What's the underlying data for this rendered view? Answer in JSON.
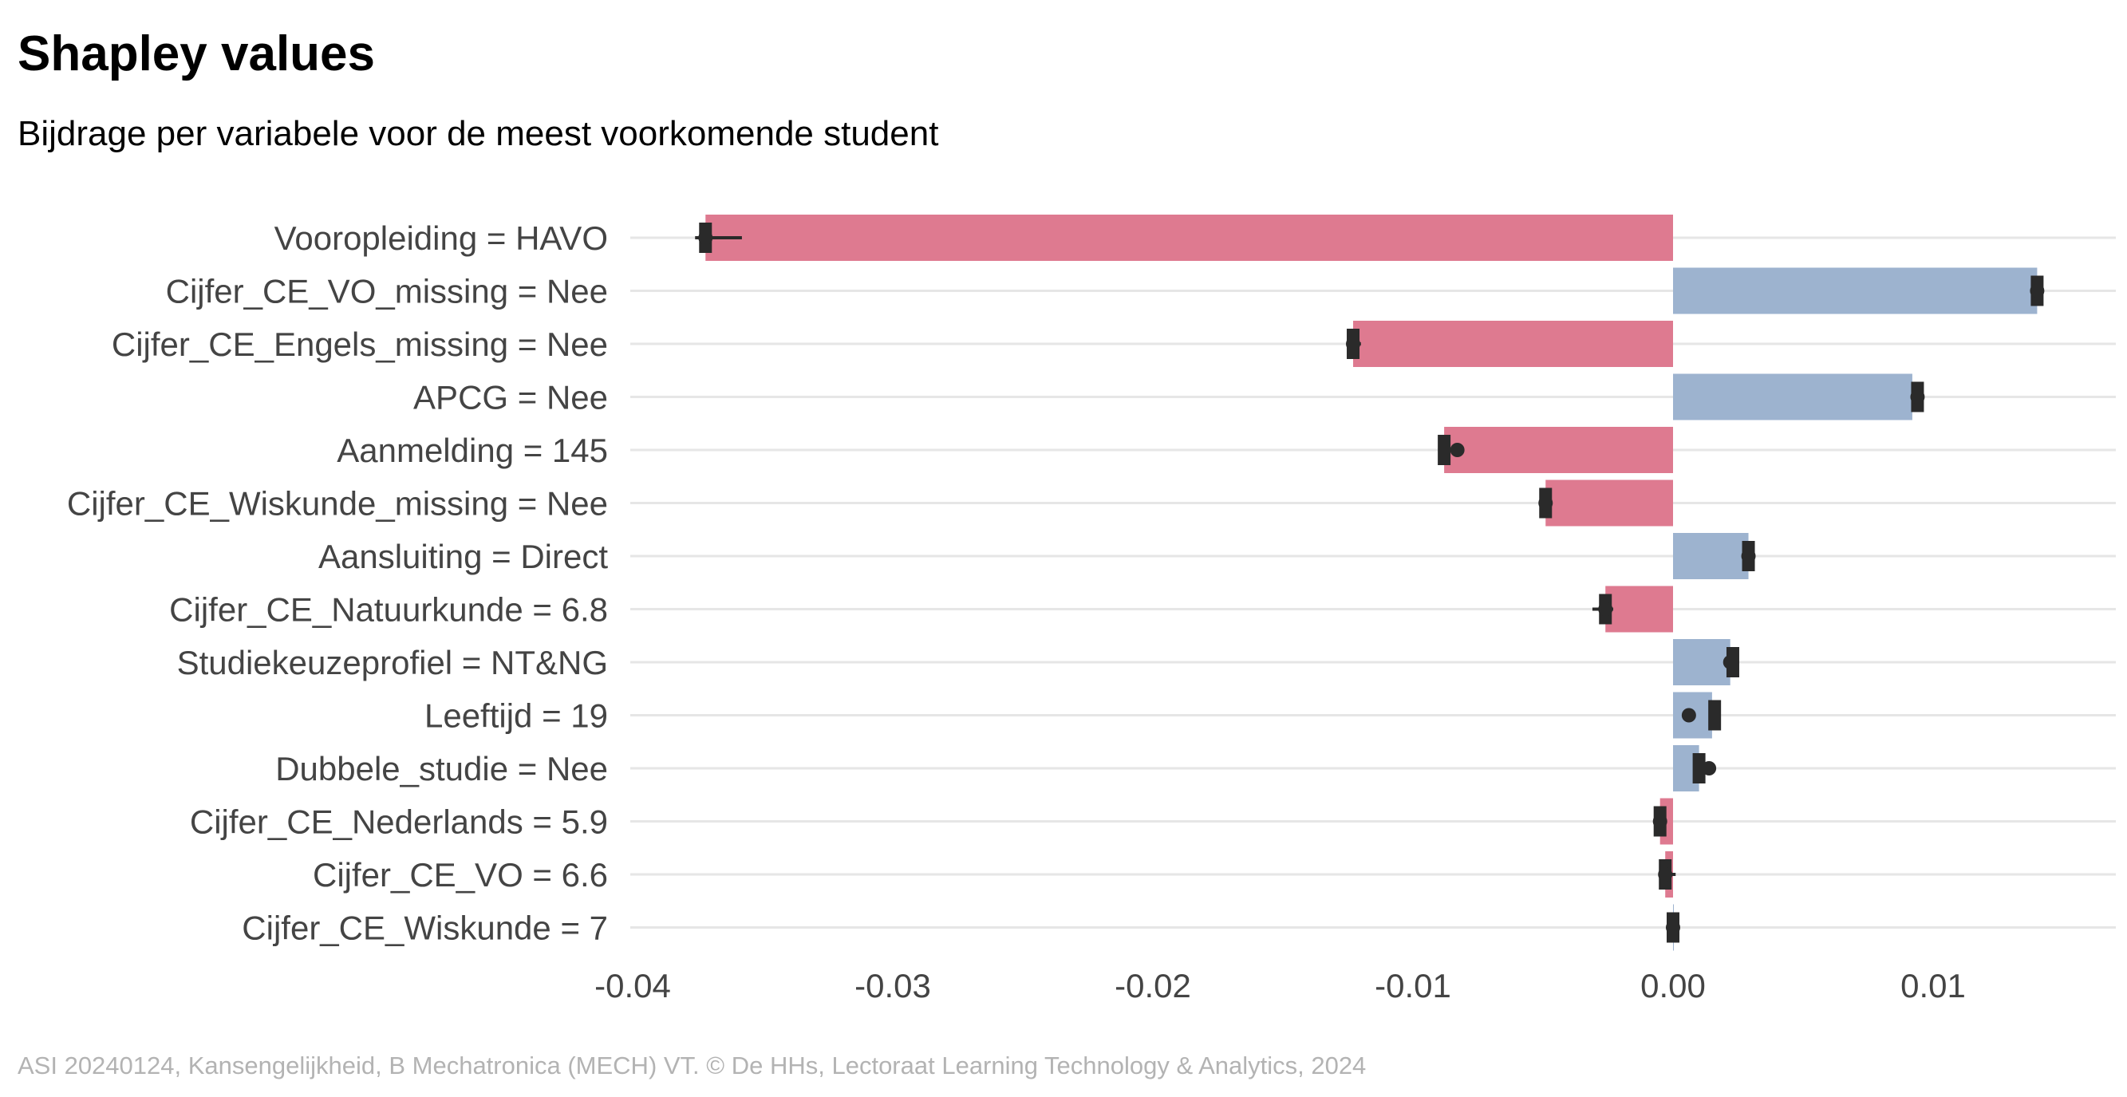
{
  "chart_data": {
    "type": "bar",
    "orientation": "horizontal",
    "title": "Shapley values",
    "subtitle": "Bijdrage per variabele voor de meest voorkomende student",
    "caption": "ASI 20240124, Kansengelijkheid, B Mechatronica (MECH) VT. © De HHs, Lectoraat Learning Technology & Analytics, 2024",
    "xlabel": "",
    "ylabel": "",
    "xlim": [
      -0.04,
      0.017
    ],
    "xticks": [
      -0.04,
      -0.03,
      -0.02,
      -0.01,
      0.0,
      0.01
    ],
    "xtick_labels": [
      "-0.04",
      "-0.03",
      "-0.02",
      "-0.01",
      "0.00",
      "0.01"
    ],
    "grid": "horizontal",
    "colors": {
      "negative": "#DE7A90",
      "positive": "#9DB3CF",
      "marker": "#2a2a2a",
      "grid": "#e6e6e6"
    },
    "categories": [
      "Vooropleiding = HAVO",
      "Cijfer_CE_VO_missing = Nee",
      "Cijfer_CE_Engels_missing = Nee",
      "APCG = Nee",
      "Aanmelding = 145",
      "Cijfer_CE_Wiskunde_missing = Nee",
      "Aansluiting = Direct",
      "Cijfer_CE_Natuurkunde = 6.8",
      "Studiekeuzeprofiel = NT&NG",
      "Leeftijd = 19",
      "Dubbele_studie = Nee",
      "Cijfer_CE_Nederlands = 5.9",
      "Cijfer_CE_VO = 6.6",
      "Cijfer_CE_Wiskunde = 7"
    ],
    "values": [
      -0.0372,
      0.014,
      -0.0123,
      0.0092,
      -0.0088,
      -0.0049,
      0.0029,
      -0.0026,
      0.0022,
      0.0015,
      0.001,
      -0.0005,
      -0.0003,
      0.0
    ],
    "box_center": [
      -0.0372,
      0.014,
      -0.0123,
      0.0094,
      -0.0088,
      -0.0049,
      0.0029,
      -0.0026,
      0.0023,
      0.0016,
      0.001,
      -0.0005,
      -0.0003,
      0.0
    ],
    "whisker_low": [
      -0.0376,
      0.0138,
      -0.0125,
      0.0092,
      -0.009,
      -0.005,
      0.0029,
      -0.0031,
      0.0021,
      0.0015,
      0.0009,
      -0.0006,
      -0.0005,
      0.0
    ],
    "whisker_high": [
      -0.0358,
      0.0142,
      -0.012,
      0.0095,
      -0.0087,
      -0.0049,
      0.003,
      -0.0023,
      0.0024,
      0.0017,
      0.0011,
      -0.0005,
      0.0001,
      0.0
    ],
    "points": [
      -0.0372,
      0.014,
      -0.0123,
      0.0094,
      -0.0086,
      -0.0049,
      0.0029,
      -0.0026,
      0.0022,
      0.0011,
      0.0012,
      -0.0005,
      -0.0003,
      0.0
    ]
  }
}
